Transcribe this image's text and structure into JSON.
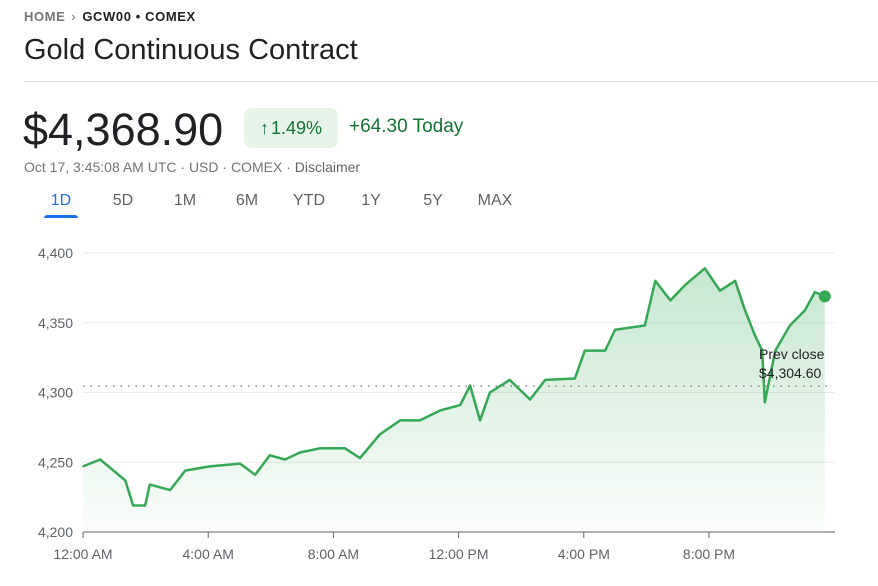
{
  "breadcrumb": {
    "home": "HOME",
    "separator_icon": "chevron-right-icon",
    "current": "GCW00 • COMEX"
  },
  "title": "Gold Continuous Contract",
  "quote": {
    "price": "$4,368.90",
    "percent_change": "1.49%",
    "change_icon": "arrow-up-icon",
    "change_today": "+64.30 Today",
    "meta": "Oct 17, 3:45:08 AM UTC · USD · COMEX · ",
    "disclaimer": "Disclaimer"
  },
  "colors": {
    "positive": "#137333",
    "line": "#34a853",
    "badge_bg": "#e6f4ea",
    "accent": "#1a73e8"
  },
  "tabs": [
    {
      "label": "1D",
      "active": true
    },
    {
      "label": "5D"
    },
    {
      "label": "1M"
    },
    {
      "label": "6M"
    },
    {
      "label": "YTD"
    },
    {
      "label": "1Y"
    },
    {
      "label": "5Y"
    },
    {
      "label": "MAX"
    }
  ],
  "chart_data": {
    "type": "area",
    "x_ticks": [
      "12:00 AM",
      "4:00 AM",
      "8:00 AM",
      "12:00 PM",
      "4:00 PM",
      "8:00 PM"
    ],
    "y_ticks": [
      "4,200",
      "4,250",
      "4,300",
      "4,350",
      "4,400"
    ],
    "ylim": [
      4200,
      4400
    ],
    "xlim": [
      "00:00",
      "24:00"
    ],
    "grid": true,
    "prev_close": {
      "label": "Prev close",
      "value_label": "$4,304.60",
      "value": 4304.6
    },
    "series": [
      {
        "x": [
          "00:00",
          "00:33",
          "01:21",
          "01:36",
          "01:59",
          "02:08",
          "02:47",
          "03:16",
          "04:03",
          "05:01",
          "05:30",
          "05:58",
          "06:27",
          "06:56",
          "07:34",
          "08:22",
          "08:51",
          "09:29",
          "10:08",
          "10:46",
          "11:24",
          "12:03",
          "12:22",
          "12:41",
          "13:00",
          "13:38",
          "14:17",
          "14:46",
          "15:43",
          "16:02",
          "16:41",
          "17:00",
          "17:57",
          "18:17",
          "18:46",
          "19:14",
          "19:52",
          "20:21",
          "20:50",
          "21:09",
          "21:28",
          "21:42",
          "21:47",
          "22:07",
          "22:35",
          "23:04",
          "23:23",
          "23:42"
        ],
        "y": [
          4247,
          4252,
          4237,
          4219,
          4219,
          4234,
          4230,
          4244,
          4247,
          4249,
          4241,
          4255,
          4252,
          4257,
          4260,
          4260,
          4253,
          4270,
          4280,
          4280,
          4287,
          4291,
          4305,
          4280,
          4300,
          4309,
          4295,
          4309,
          4310,
          4330,
          4330,
          4345,
          4348,
          4380,
          4366,
          4377,
          4389,
          4373,
          4380,
          4359,
          4341,
          4330,
          4293,
          4330,
          4348,
          4359,
          4372,
          4368.9
        ]
      }
    ]
  }
}
